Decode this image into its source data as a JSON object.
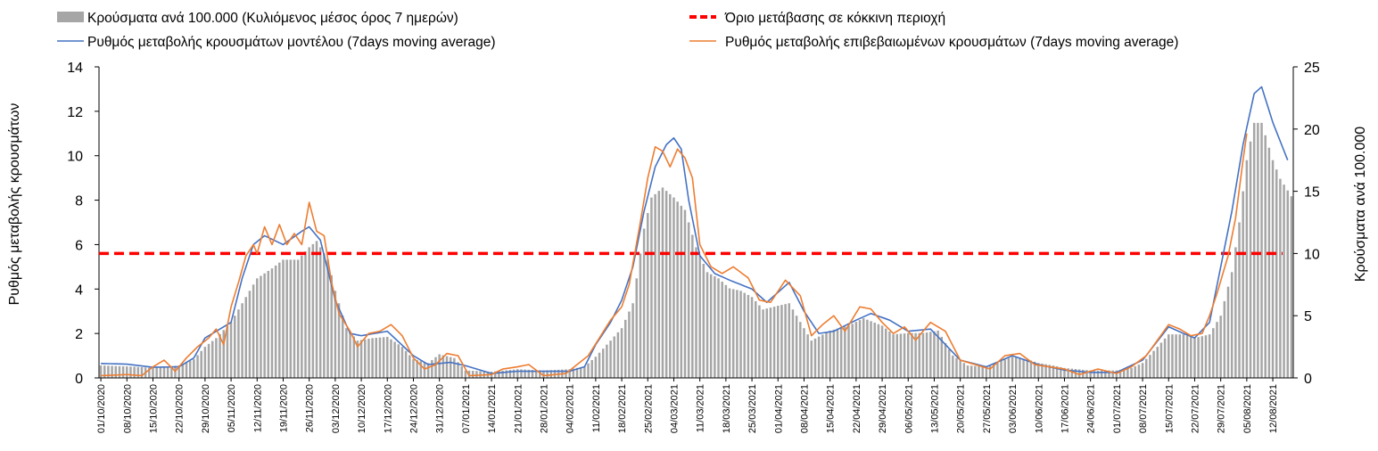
{
  "chart_data": {
    "type": "bar+line",
    "title": "",
    "ylabel_left": "Ρυθμός μεταβολής κρουσμάτων",
    "ylabel_right": "Κρούσματα ανά 100.000",
    "ylim_left": [
      0,
      14
    ],
    "yticks_left": [
      "0",
      "2",
      "4",
      "6",
      "8",
      "10",
      "12",
      "14"
    ],
    "ylim_right": [
      0,
      25
    ],
    "yticks_right": [
      "0",
      "5",
      "10",
      "15",
      "20",
      "25"
    ],
    "x_start": "2020-10-01",
    "x_end": "2021-08-17",
    "x_tick_labels": [
      "01/10/2020",
      "08/10/2020",
      "15/10/2020",
      "22/10/2020",
      "29/10/2020",
      "05/11/2020",
      "12/11/2020",
      "19/11/2020",
      "26/11/2020",
      "03/12/2020",
      "10/12/2020",
      "17/12/2020",
      "24/12/2020",
      "31/12/2020",
      "07/01/2021",
      "14/01/2021",
      "21/01/2021",
      "28/01/2021",
      "04/02/2021",
      "11/02/2021",
      "18/02/2021",
      "25/02/2021",
      "04/03/2021",
      "11/03/2021",
      "18/03/2021",
      "25/03/2021",
      "01/04/2021",
      "08/04/2021",
      "15/04/2021",
      "22/04/2021",
      "29/04/2021",
      "06/05/2021",
      "13/05/2021",
      "20/05/2021",
      "27/05/2021",
      "03/06/2021",
      "10/06/2021",
      "17/06/2021",
      "24/06/2021",
      "01/07/2021",
      "08/07/2021",
      "15/07/2021",
      "22/07/2021",
      "29/07/2021",
      "05/08/2021",
      "12/08/2021"
    ],
    "legend": {
      "bars": "Κρούσματα ανά 100.000 (Κυλιόμενος μέσος όρος 7 ημερών)",
      "threshold": "Όριο μετάβασης σε κόκκινη περιοχή",
      "model": "Ρυθμός μεταβολής κρουσμάτων μοντέλου (7days moving average)",
      "confirmed": "Ρυθμός μεταβολής επιβεβαιωμένων κρουσμάτων (7days moving average)"
    },
    "threshold_value": 5.6,
    "colors": {
      "bars": "#a6a6a6",
      "threshold": "#ff0000",
      "model": "#4472c4",
      "confirmed": "#ed7d31"
    },
    "bars_keypoints": [
      [
        "2020-10-01",
        1.0
      ],
      [
        "2020-10-10",
        0.9
      ],
      [
        "2020-10-15",
        0.8
      ],
      [
        "2020-10-22",
        1.0
      ],
      [
        "2020-10-26",
        1.5
      ],
      [
        "2020-10-29",
        2.5
      ],
      [
        "2020-11-01",
        3.2
      ],
      [
        "2020-11-05",
        4.5
      ],
      [
        "2020-11-09",
        6.5
      ],
      [
        "2020-11-12",
        8.0
      ],
      [
        "2020-11-16",
        8.8
      ],
      [
        "2020-11-19",
        9.5
      ],
      [
        "2020-11-23",
        9.5
      ],
      [
        "2020-11-26",
        10.5
      ],
      [
        "2020-11-28",
        11.0
      ],
      [
        "2020-12-01",
        9.5
      ],
      [
        "2020-12-03",
        7.0
      ],
      [
        "2020-12-06",
        4.0
      ],
      [
        "2020-12-09",
        3.0
      ],
      [
        "2020-12-13",
        3.2
      ],
      [
        "2020-12-17",
        3.3
      ],
      [
        "2020-12-21",
        2.5
      ],
      [
        "2020-12-24",
        1.5
      ],
      [
        "2020-12-28",
        1.2
      ],
      [
        "2020-12-31",
        1.9
      ],
      [
        "2021-01-04",
        1.6
      ],
      [
        "2021-01-07",
        0.6
      ],
      [
        "2021-01-14",
        0.5
      ],
      [
        "2021-01-21",
        0.7
      ],
      [
        "2021-01-28",
        0.6
      ],
      [
        "2021-02-04",
        0.7
      ],
      [
        "2021-02-08",
        0.9
      ],
      [
        "2021-02-11",
        1.7
      ],
      [
        "2021-02-15",
        3.0
      ],
      [
        "2021-02-18",
        4.0
      ],
      [
        "2021-02-21",
        6.0
      ],
      [
        "2021-02-24",
        12.0
      ],
      [
        "2021-02-26",
        14.5
      ],
      [
        "2021-03-01",
        15.3
      ],
      [
        "2021-03-04",
        14.5
      ],
      [
        "2021-03-07",
        13.5
      ],
      [
        "2021-03-10",
        10.5
      ],
      [
        "2021-03-13",
        8.5
      ],
      [
        "2021-03-16",
        8.0
      ],
      [
        "2021-03-19",
        7.2
      ],
      [
        "2021-03-22",
        7.0
      ],
      [
        "2021-03-25",
        6.5
      ],
      [
        "2021-03-28",
        5.5
      ],
      [
        "2021-04-01",
        5.8
      ],
      [
        "2021-04-04",
        6.0
      ],
      [
        "2021-04-07",
        4.5
      ],
      [
        "2021-04-10",
        3.0
      ],
      [
        "2021-04-15",
        3.8
      ],
      [
        "2021-04-20",
        4.2
      ],
      [
        "2021-04-24",
        4.8
      ],
      [
        "2021-04-29",
        4.2
      ],
      [
        "2021-05-02",
        3.5
      ],
      [
        "2021-05-06",
        3.6
      ],
      [
        "2021-05-10",
        3.6
      ],
      [
        "2021-05-14",
        3.8
      ],
      [
        "2021-05-18",
        1.8
      ],
      [
        "2021-05-22",
        1.0
      ],
      [
        "2021-05-27",
        0.9
      ],
      [
        "2021-06-03",
        1.7
      ],
      [
        "2021-06-07",
        1.5
      ],
      [
        "2021-06-10",
        1.2
      ],
      [
        "2021-06-14",
        1.0
      ],
      [
        "2021-06-17",
        0.8
      ],
      [
        "2021-06-24",
        0.6
      ],
      [
        "2021-07-01",
        0.6
      ],
      [
        "2021-07-05",
        0.8
      ],
      [
        "2021-07-08",
        1.2
      ],
      [
        "2021-07-12",
        2.5
      ],
      [
        "2021-07-15",
        3.5
      ],
      [
        "2021-07-19",
        3.5
      ],
      [
        "2021-07-22",
        3.2
      ],
      [
        "2021-07-26",
        3.5
      ],
      [
        "2021-07-29",
        5.0
      ],
      [
        "2021-08-01",
        8.5
      ],
      [
        "2021-08-03",
        12.5
      ],
      [
        "2021-08-05",
        17.5
      ],
      [
        "2021-08-07",
        20.5
      ],
      [
        "2021-08-09",
        20.5
      ],
      [
        "2021-08-12",
        17.5
      ],
      [
        "2021-08-14",
        16.0
      ],
      [
        "2021-08-17",
        14.6
      ]
    ],
    "model_keypoints": [
      [
        "2020-10-01",
        0.65
      ],
      [
        "2020-10-08",
        0.62
      ],
      [
        "2020-10-15",
        0.48
      ],
      [
        "2020-10-22",
        0.5
      ],
      [
        "2020-10-26",
        0.9
      ],
      [
        "2020-10-29",
        1.8
      ],
      [
        "2020-11-01",
        2.1
      ],
      [
        "2020-11-05",
        2.5
      ],
      [
        "2020-11-08",
        4.5
      ],
      [
        "2020-11-11",
        6.0
      ],
      [
        "2020-11-14",
        6.4
      ],
      [
        "2020-11-19",
        6.0
      ],
      [
        "2020-11-24",
        6.6
      ],
      [
        "2020-11-26",
        6.8
      ],
      [
        "2020-11-29",
        6.2
      ],
      [
        "2020-12-03",
        3.5
      ],
      [
        "2020-12-07",
        2.0
      ],
      [
        "2020-12-10",
        1.9
      ],
      [
        "2020-12-17",
        2.1
      ],
      [
        "2020-12-24",
        1.0
      ],
      [
        "2020-12-28",
        0.6
      ],
      [
        "2021-01-03",
        0.7
      ],
      [
        "2021-01-07",
        0.55
      ],
      [
        "2021-01-14",
        0.2
      ],
      [
        "2021-01-21",
        0.3
      ],
      [
        "2021-02-04",
        0.3
      ],
      [
        "2021-02-08",
        0.5
      ],
      [
        "2021-02-11",
        1.5
      ],
      [
        "2021-02-15",
        2.5
      ],
      [
        "2021-02-18",
        3.5
      ],
      [
        "2021-02-21",
        5.0
      ],
      [
        "2021-02-24",
        7.5
      ],
      [
        "2021-02-27",
        9.5
      ],
      [
        "2021-03-02",
        10.5
      ],
      [
        "2021-03-04",
        10.8
      ],
      [
        "2021-03-06",
        10.3
      ],
      [
        "2021-03-08",
        8.0
      ],
      [
        "2021-03-11",
        5.5
      ],
      [
        "2021-03-15",
        4.7
      ],
      [
        "2021-03-19",
        4.4
      ],
      [
        "2021-03-25",
        4.0
      ],
      [
        "2021-03-29",
        3.4
      ],
      [
        "2021-04-04",
        4.3
      ],
      [
        "2021-04-08",
        3.0
      ],
      [
        "2021-04-12",
        2.0
      ],
      [
        "2021-04-16",
        2.1
      ],
      [
        "2021-04-22",
        2.6
      ],
      [
        "2021-04-26",
        2.9
      ],
      [
        "2021-05-01",
        2.6
      ],
      [
        "2021-05-06",
        2.1
      ],
      [
        "2021-05-12",
        2.2
      ],
      [
        "2021-05-16",
        1.5
      ],
      [
        "2021-05-20",
        0.8
      ],
      [
        "2021-05-27",
        0.5
      ],
      [
        "2021-06-03",
        1.0
      ],
      [
        "2021-06-10",
        0.6
      ],
      [
        "2021-06-17",
        0.35
      ],
      [
        "2021-06-24",
        0.25
      ],
      [
        "2021-07-01",
        0.25
      ],
      [
        "2021-07-08",
        0.8
      ],
      [
        "2021-07-15",
        2.3
      ],
      [
        "2021-07-19",
        2.0
      ],
      [
        "2021-07-22",
        1.8
      ],
      [
        "2021-07-26",
        2.5
      ],
      [
        "2021-07-29",
        5.0
      ],
      [
        "2021-08-01",
        7.5
      ],
      [
        "2021-08-04",
        10.5
      ],
      [
        "2021-08-07",
        12.8
      ],
      [
        "2021-08-09",
        13.1
      ],
      [
        "2021-08-12",
        11.5
      ],
      [
        "2021-08-16",
        9.8
      ]
    ],
    "confirmed_keypoints": [
      [
        "2020-10-01",
        0.1
      ],
      [
        "2020-10-08",
        0.15
      ],
      [
        "2020-10-12",
        0.1
      ],
      [
        "2020-10-15",
        0.5
      ],
      [
        "2020-10-18",
        0.8
      ],
      [
        "2020-10-21",
        0.3
      ],
      [
        "2020-10-24",
        0.9
      ],
      [
        "2020-10-27",
        1.4
      ],
      [
        "2020-10-30",
        1.8
      ],
      [
        "2020-11-01",
        2.2
      ],
      [
        "2020-11-03",
        1.5
      ],
      [
        "2020-11-05",
        3.2
      ],
      [
        "2020-11-07",
        4.3
      ],
      [
        "2020-11-09",
        5.5
      ],
      [
        "2020-11-11",
        6.0
      ],
      [
        "2020-11-12",
        5.6
      ],
      [
        "2020-11-14",
        6.8
      ],
      [
        "2020-11-16",
        6.0
      ],
      [
        "2020-11-18",
        6.9
      ],
      [
        "2020-11-20",
        6.0
      ],
      [
        "2020-11-22",
        6.5
      ],
      [
        "2020-11-24",
        6.0
      ],
      [
        "2020-11-26",
        7.9
      ],
      [
        "2020-11-28",
        6.6
      ],
      [
        "2020-11-30",
        6.4
      ],
      [
        "2020-12-02",
        4.3
      ],
      [
        "2020-12-04",
        2.9
      ],
      [
        "2020-12-07",
        2.1
      ],
      [
        "2020-12-09",
        1.4
      ],
      [
        "2020-12-12",
        2.0
      ],
      [
        "2020-12-15",
        2.1
      ],
      [
        "2020-12-18",
        2.4
      ],
      [
        "2020-12-21",
        1.9
      ],
      [
        "2020-12-24",
        0.9
      ],
      [
        "2020-12-27",
        0.4
      ],
      [
        "2020-12-30",
        0.6
      ],
      [
        "2021-01-02",
        1.1
      ],
      [
        "2021-01-05",
        1.0
      ],
      [
        "2021-01-08",
        0.1
      ],
      [
        "2021-01-14",
        0.15
      ],
      [
        "2021-01-17",
        0.4
      ],
      [
        "2021-01-21",
        0.5
      ],
      [
        "2021-01-24",
        0.6
      ],
      [
        "2021-01-28",
        0.1
      ],
      [
        "2021-02-03",
        0.2
      ],
      [
        "2021-02-06",
        0.6
      ],
      [
        "2021-02-09",
        1.0
      ],
      [
        "2021-02-12",
        1.8
      ],
      [
        "2021-02-15",
        2.6
      ],
      [
        "2021-02-18",
        3.2
      ],
      [
        "2021-02-20",
        4.2
      ],
      [
        "2021-02-23",
        7.0
      ],
      [
        "2021-02-25",
        9.0
      ],
      [
        "2021-02-27",
        10.4
      ],
      [
        "2021-03-01",
        10.2
      ],
      [
        "2021-03-03",
        9.5
      ],
      [
        "2021-03-05",
        10.3
      ],
      [
        "2021-03-07",
        9.9
      ],
      [
        "2021-03-09",
        9.0
      ],
      [
        "2021-03-11",
        6.0
      ],
      [
        "2021-03-14",
        5.0
      ],
      [
        "2021-03-17",
        4.7
      ],
      [
        "2021-03-20",
        5.0
      ],
      [
        "2021-03-24",
        4.5
      ],
      [
        "2021-03-27",
        3.5
      ],
      [
        "2021-03-30",
        3.4
      ],
      [
        "2021-04-03",
        4.4
      ],
      [
        "2021-04-07",
        3.7
      ],
      [
        "2021-04-10",
        1.9
      ],
      [
        "2021-04-13",
        2.4
      ],
      [
        "2021-04-16",
        2.8
      ],
      [
        "2021-04-19",
        2.1
      ],
      [
        "2021-04-23",
        3.2
      ],
      [
        "2021-04-26",
        3.1
      ],
      [
        "2021-04-29",
        2.5
      ],
      [
        "2021-05-02",
        2.0
      ],
      [
        "2021-05-05",
        2.3
      ],
      [
        "2021-05-08",
        1.7
      ],
      [
        "2021-05-12",
        2.5
      ],
      [
        "2021-05-16",
        2.1
      ],
      [
        "2021-05-20",
        0.8
      ],
      [
        "2021-05-24",
        0.6
      ],
      [
        "2021-05-28",
        0.4
      ],
      [
        "2021-06-01",
        1.0
      ],
      [
        "2021-06-05",
        1.1
      ],
      [
        "2021-06-09",
        0.6
      ],
      [
        "2021-06-13",
        0.5
      ],
      [
        "2021-06-17",
        0.4
      ],
      [
        "2021-06-21",
        0.15
      ],
      [
        "2021-06-26",
        0.4
      ],
      [
        "2021-07-01",
        0.2
      ],
      [
        "2021-07-05",
        0.5
      ],
      [
        "2021-07-09",
        1.0
      ],
      [
        "2021-07-15",
        2.4
      ],
      [
        "2021-07-18",
        2.2
      ],
      [
        "2021-07-21",
        1.9
      ],
      [
        "2021-07-24",
        2.0
      ],
      [
        "2021-07-26",
        2.8
      ],
      [
        "2021-07-28",
        3.8
      ],
      [
        "2021-07-31",
        5.5
      ],
      [
        "2021-08-02",
        7.2
      ],
      [
        "2021-08-04",
        9.8
      ],
      [
        "2021-08-05",
        11.0
      ]
    ]
  }
}
